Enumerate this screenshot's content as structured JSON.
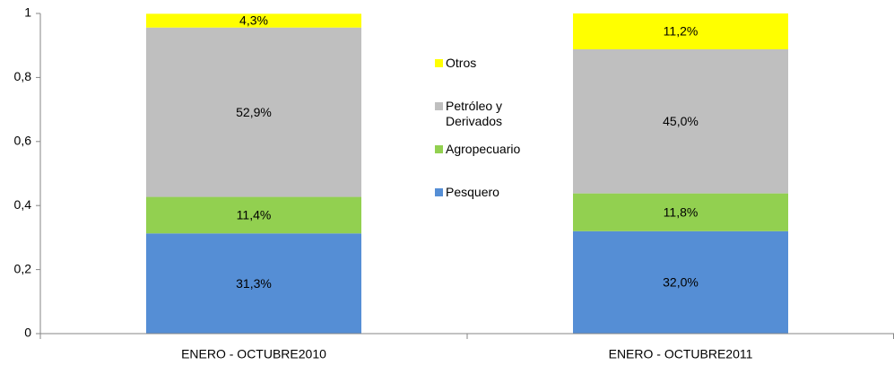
{
  "chart_data": {
    "type": "stacked_bar",
    "categories": [
      "ENERO - OCTUBRE2010",
      "ENERO - OCTUBRE2011"
    ],
    "series": [
      {
        "name": "Pesquero",
        "color": "#558ed5",
        "values": [
          0.313,
          0.32
        ],
        "value_labels": [
          "31,3%",
          "32,0%"
        ]
      },
      {
        "name": "Agropecuario",
        "color": "#92d050",
        "values": [
          0.114,
          0.118
        ],
        "value_labels": [
          "11,4%",
          "11,8%"
        ]
      },
      {
        "name": "Petróleo y Derivados",
        "color": "#bfbfbf",
        "values": [
          0.529,
          0.45
        ],
        "value_labels": [
          "52,9%",
          "45,0%"
        ]
      },
      {
        "name": "Otros",
        "color": "#ffff00",
        "values": [
          0.043,
          0.112
        ],
        "value_labels": [
          "4,3%",
          "11,2%"
        ]
      }
    ],
    "ylim": [
      0,
      1
    ],
    "yticks": [
      0,
      {
        "value": 0.2,
        "label": "0,2"
      },
      {
        "value": 0.4,
        "label": "0,4"
      },
      {
        "value": 0.6,
        "label": "0,6"
      },
      {
        "value": 0.8,
        "label": "0,8"
      },
      1
    ],
    "legend": "center"
  }
}
